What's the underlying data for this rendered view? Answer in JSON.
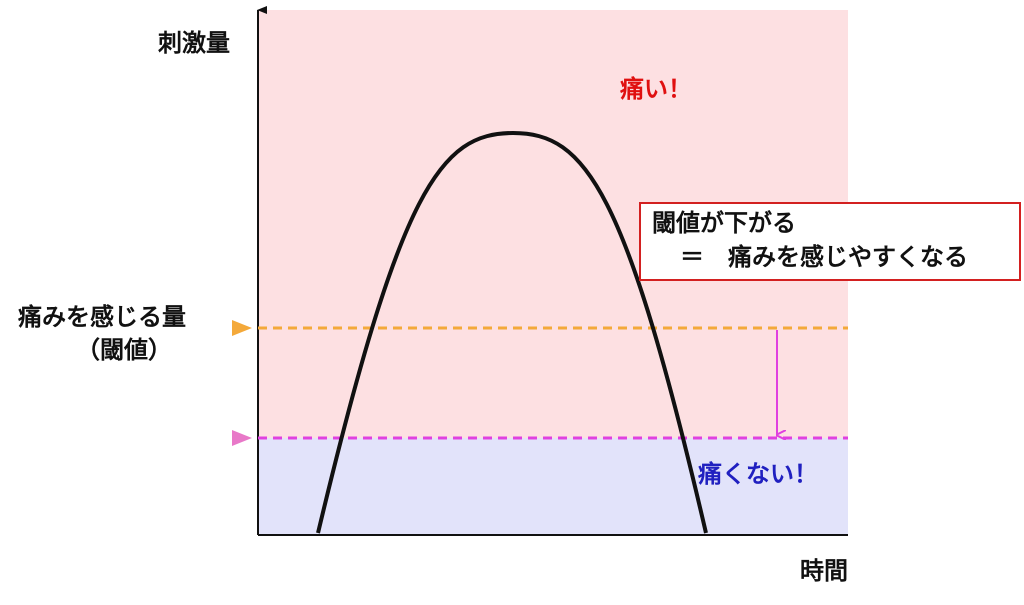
{
  "axes": {
    "y_label": "刺激量",
    "x_label": "時間"
  },
  "regions": {
    "pain": "痛い！",
    "no_pain": "痛くない！"
  },
  "threshold": {
    "label": "痛みを感じる量",
    "sub_label": "（閾値）"
  },
  "note": {
    "line1": "閾値が下がる",
    "line2": "＝　痛みを感じやすくなる"
  }
}
